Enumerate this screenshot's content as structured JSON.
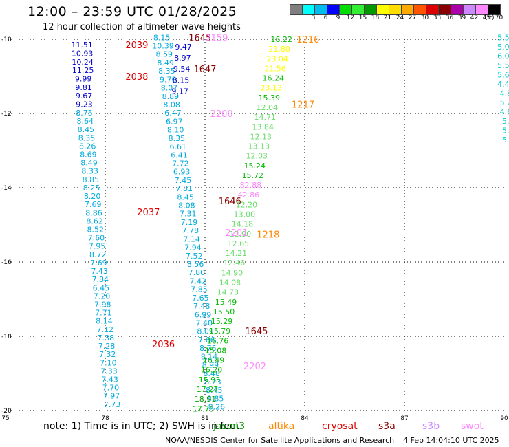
{
  "header": {
    "title": "12:00 – 23:59 UTC 01/28/2025",
    "subtitle": "12 hour collection of altimeter wave heights"
  },
  "color_scale": {
    "unit": "(ft)",
    "bins": [
      {
        "label": "",
        "color": "#7f7f7f"
      },
      {
        "label": "3",
        "color": "#00ffff"
      },
      {
        "label": "6",
        "color": "#00bbee"
      },
      {
        "label": "9",
        "color": "#0000ff"
      },
      {
        "label": "12",
        "color": "#00dd00"
      },
      {
        "label": "15",
        "color": "#33ee33"
      },
      {
        "label": "18",
        "color": "#009900"
      },
      {
        "label": "21",
        "color": "#ffff00"
      },
      {
        "label": "24",
        "color": "#ffdd00"
      },
      {
        "label": "27",
        "color": "#ffaa00"
      },
      {
        "label": "30",
        "color": "#ff5500"
      },
      {
        "label": "33",
        "color": "#dd0000"
      },
      {
        "label": "36",
        "color": "#880000"
      },
      {
        "label": "39",
        "color": "#aa00aa"
      },
      {
        "label": "42",
        "color": "#cc88ff"
      },
      {
        "label": "45",
        "color": "#ff88ff"
      },
      {
        "label": "70",
        "color": "#000000"
      }
    ]
  },
  "map": {
    "lon_ticks": [
      "75",
      "78",
      "81",
      "84",
      "87",
      "90"
    ],
    "lat_ticks": [
      "-10",
      "-12",
      "-14",
      "-16",
      "-18",
      "-20"
    ],
    "grid": "dotted"
  },
  "time_labels": [
    {
      "text": "2039",
      "lon": 78.95,
      "lat": -10.15,
      "color": "#dd0000"
    },
    {
      "text": "2038",
      "lon": 78.95,
      "lat": -11.0,
      "color": "#dd0000"
    },
    {
      "text": "2037",
      "lon": 79.3,
      "lat": -14.65,
      "color": "#dd0000"
    },
    {
      "text": "2036",
      "lon": 79.75,
      "lat": -18.2,
      "color": "#dd0000"
    },
    {
      "text": "1645",
      "lon": 80.85,
      "lat": -9.95,
      "color": "#880000"
    },
    {
      "text": "1647",
      "lon": 81.0,
      "lat": -10.8,
      "color": "#880000"
    },
    {
      "text": "1646",
      "lon": 81.75,
      "lat": -14.35,
      "color": "#880000"
    },
    {
      "text": "1645",
      "lon": 82.55,
      "lat": -17.85,
      "color": "#880000"
    },
    {
      "text": "2159",
      "lon": 81.35,
      "lat": -9.95,
      "color": "#ff88ff"
    },
    {
      "text": "2200",
      "lon": 81.5,
      "lat": -12.0,
      "color": "#ff88ff"
    },
    {
      "text": "2201",
      "lon": 81.95,
      "lat": -15.2,
      "color": "#ff88ff"
    },
    {
      "text": "2202",
      "lon": 82.5,
      "lat": -18.8,
      "color": "#ff88ff"
    },
    {
      "text": "1216",
      "lon": 84.1,
      "lat": -10.0,
      "color": "#ff8800"
    },
    {
      "text": "1217",
      "lon": 83.95,
      "lat": -11.75,
      "color": "#ff8800"
    },
    {
      "text": "1218",
      "lon": 82.9,
      "lat": -15.25,
      "color": "#ff8800"
    }
  ],
  "observations": {
    "track_west": {
      "color": "#00aadd",
      "labels": [
        "8.75",
        "8.64",
        "8.45",
        "8.35",
        "8.26",
        "8.69",
        "8.49",
        "8.33",
        "8.85",
        "8.25",
        "8.20",
        "7.69",
        "8.86",
        "8.62",
        "8.52",
        "7.60",
        "7.95",
        "8.72",
        "7.69",
        "7.43",
        "7.84",
        "6.45",
        "7.20",
        "7.98",
        "7.71",
        "8.14",
        "7.12",
        "7.38",
        "7.28",
        "7.32",
        "7.10",
        "7.33",
        "7.43",
        "7.70",
        "7.97",
        "7.73"
      ],
      "lon_start": 77.37,
      "lon_end": 78.21,
      "lat_start": -11.98,
      "lat_end": -19.83
    },
    "track_west_blue": {
      "color": "#0000cc",
      "labels": [
        "11.51",
        "10.93",
        "10.24",
        "11.25",
        "9.99",
        "9.81",
        "9.67",
        "9.23"
      ],
      "lon_start": 77.3,
      "lon_end": 77.37,
      "lat_start": -10.15,
      "lat_end": -11.75
    },
    "track_middle": {
      "color": "#00aadd",
      "labels": [
        "8.15",
        "10.39",
        "8.59",
        "8.49",
        "8.35",
        "9.70",
        "8.07",
        "8.89",
        "8.08",
        "6.47",
        "6.97",
        "8.10",
        "8.35",
        "6.61",
        "6.41",
        "7.72",
        "6.93",
        "7.45",
        "7.81",
        "8.45",
        "8.08",
        "7.31",
        "7.19",
        "7.78",
        "7.14",
        "7.94",
        "7.52",
        "8.56",
        "7.80",
        "7.42",
        "7.85",
        "7.65",
        "7.48",
        "6.99",
        "7.40",
        "8.09",
        "7.66",
        "8.76",
        "8.14",
        "8.99",
        "8.48",
        "8.23",
        "8.45",
        "8.85",
        "8.26"
      ],
      "lon_start": 79.7,
      "lon_end": 81.35,
      "lat_start": -9.95,
      "lat_end": -19.9
    },
    "track_middle_blue": {
      "color": "#0000cc",
      "labels": [
        "9.47",
        "8.97",
        "9.54",
        "8.15",
        "9.17"
      ],
      "lon_start": 80.35,
      "lon_end": 80.25,
      "lat_start": -10.2,
      "lat_end": -11.4
    },
    "track_east": {
      "color": "#33cc33",
      "labels": [
        "16.22",
        "21.80",
        "23.04",
        "21.56",
        "16.24",
        "23.13",
        "15.39",
        "12.04",
        "14.71",
        "13.84",
        "12.13",
        "13.13",
        "12.03",
        "15.24",
        "15.72",
        "82.88",
        "42.86",
        "12.20",
        "13.00",
        "14.18",
        "12.90",
        "12.65",
        "14.21",
        "12.46",
        "14.90",
        "14.08",
        "14.73",
        "15.49",
        "15.50",
        "15.29",
        "15.79",
        "16.76",
        "15.08",
        "16.49",
        "16.20",
        "15.93",
        "17.27",
        "18.91",
        "17.75"
      ],
      "lon_start": 83.3,
      "lon_end": 80.95,
      "lat_start": -10.0,
      "lat_end": -19.95
    },
    "track_far_east": {
      "color": "#00cccc",
      "labels": [
        "5.59",
        "5.02",
        "6.01",
        "5.59",
        "5.60",
        "4.44",
        "4.8",
        "5.2",
        "4.6",
        "5.",
        "5.",
        "5."
      ],
      "lon_start": 90.05,
      "lon_end": 90.05,
      "lat_start": -9.95,
      "lat_end": -12.7
    }
  },
  "footer": {
    "note": "note:  1) Time is in UTC; 2) SWH is in feet",
    "missions": [
      {
        "name": "jason3",
        "color": "#009900"
      },
      {
        "name": "altika",
        "color": "#ff8800"
      },
      {
        "name": "cryosat",
        "color": "#dd0000"
      },
      {
        "name": "s3a",
        "color": "#880000"
      },
      {
        "name": "s3b",
        "color": "#cc88ff"
      },
      {
        "name": "swot",
        "color": "#ff88ff"
      }
    ],
    "credit": "NOAA/NESDIS Center for Satellite Applications and Research",
    "timestamp": "4 Feb 14:04:10 UTC 2025"
  }
}
